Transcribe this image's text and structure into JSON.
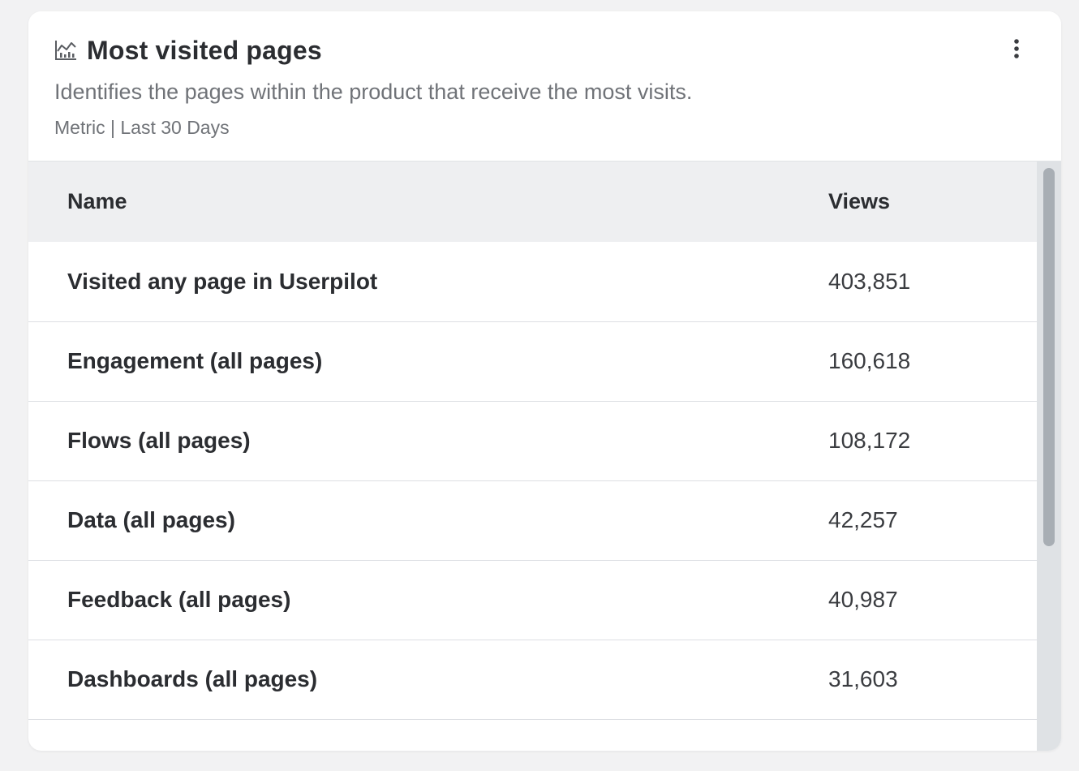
{
  "widget": {
    "title": "Most visited pages",
    "description": "Identifies the pages within the product that receive the most visits.",
    "meta": "Metric | Last 30 Days",
    "title_icon": "chart-icon",
    "menu_icon": "more-vertical-icon"
  },
  "table": {
    "headers": {
      "name": "Name",
      "views": "Views"
    },
    "rows": [
      {
        "name": "Visited any page in Userpilot",
        "views": "403,851"
      },
      {
        "name": "Engagement (all pages)",
        "views": "160,618"
      },
      {
        "name": "Flows (all pages)",
        "views": "108,172"
      },
      {
        "name": "Data (all pages)",
        "views": "42,257"
      },
      {
        "name": "Feedback (all pages)",
        "views": "40,987"
      },
      {
        "name": "Dashboards (all pages)",
        "views": "31,603"
      },
      {
        "name": "",
        "views": ""
      }
    ]
  },
  "colors": {
    "text": "#2b2d31",
    "muted": "#707378",
    "header_bg": "#eeeff1",
    "border": "#dcdfe3"
  }
}
